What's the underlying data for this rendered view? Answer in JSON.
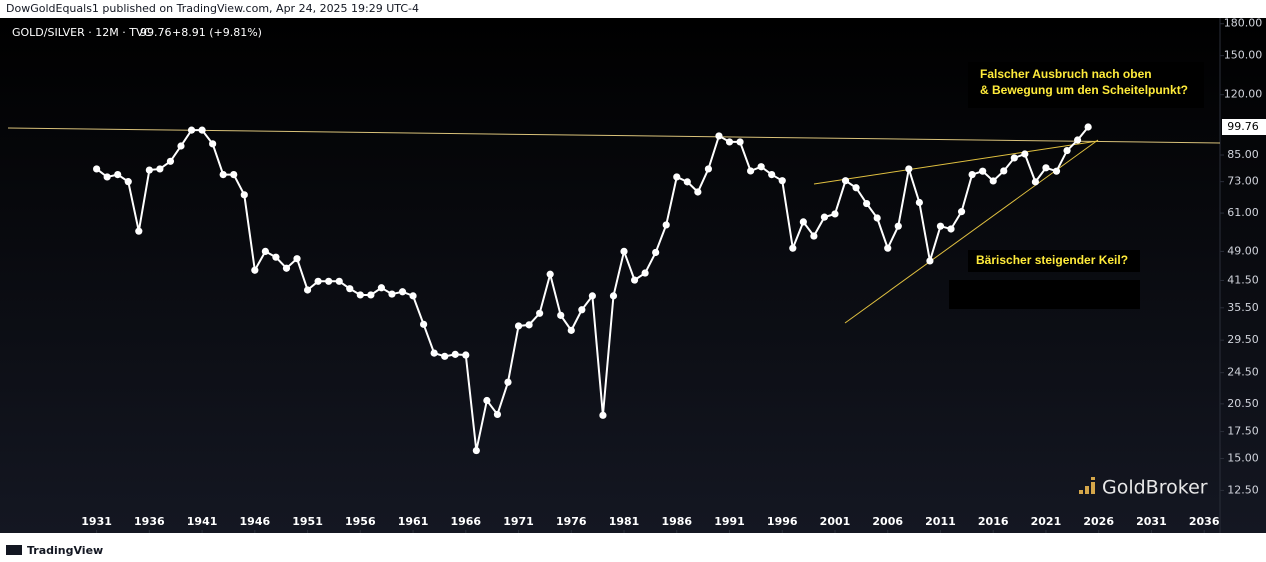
{
  "header": {
    "byline": "DowGoldEquals1 published on TradingView.com, Apr 24, 2025 19:29 UTC-4"
  },
  "chart_data": {
    "type": "line",
    "log_scale": true,
    "grid": false,
    "legend_change": "+8.91 (+9.81%)",
    "annotations": [
      "Falscher Ausbruch nach oben",
      "& Bewegung um den Scheitelpunkt?",
      "Bärischer steigender Keil?"
    ],
    "x": [
      1931,
      1932,
      1933,
      1934,
      1935,
      1936,
      1937,
      1938,
      1939,
      1940,
      1941,
      1942,
      1943,
      1944,
      1945,
      1946,
      1947,
      1948,
      1949,
      1950,
      1951,
      1952,
      1953,
      1954,
      1955,
      1956,
      1957,
      1958,
      1959,
      1960,
      1961,
      1962,
      1963,
      1964,
      1965,
      1966,
      1967,
      1968,
      1969,
      1970,
      1971,
      1972,
      1973,
      1974,
      1975,
      1976,
      1977,
      1978,
      1979,
      1980,
      1981,
      1982,
      1983,
      1984,
      1985,
      1986,
      1987,
      1988,
      1989,
      1990,
      1991,
      1992,
      1993,
      1994,
      1995,
      1996,
      1997,
      1998,
      1999,
      2000,
      2001,
      2002,
      2003,
      2004,
      2005,
      2006,
      2007,
      2008,
      2009,
      2010,
      2011,
      2012,
      2013,
      2014,
      2015,
      2016,
      2017,
      2018,
      2019,
      2020,
      2021,
      2022,
      2023,
      2024,
      2025
    ],
    "series": [
      {
        "name": "GOLD/SILVER · 12M · TVC",
        "color": "#ffffff",
        "values": [
          78.5,
          75,
          76,
          73,
          55,
          78,
          78.5,
          82,
          89.5,
          98,
          98,
          90.6,
          76,
          76,
          67.7,
          44,
          49,
          47.4,
          44.5,
          47,
          39.3,
          41.3,
          41.3,
          41.3,
          39.6,
          38.2,
          38.2,
          39.8,
          38.4,
          38.9,
          38,
          32.3,
          27.4,
          26.9,
          27.2,
          27.1,
          15.7,
          20.9,
          19.3,
          23.2,
          32,
          32.2,
          34.4,
          43,
          34,
          31.2,
          35.1,
          38,
          19.2,
          38,
          49,
          41.6,
          43.3,
          48.7,
          57,
          75,
          72.9,
          68.8,
          78.5,
          94.8,
          91.6,
          91.6,
          77.6,
          79.5,
          76,
          73.4,
          49.9,
          58,
          53.5,
          59.6,
          60.7,
          73.4,
          70.5,
          64.4,
          59.3,
          49.9,
          56.6,
          78.5,
          64.8,
          46.4,
          56.6,
          55.7,
          61.5,
          76,
          77.5,
          73.3,
          77.6,
          83.6,
          85.5,
          72.9,
          79,
          77.5,
          87.2,
          92.6,
          99.76
        ]
      }
    ],
    "xlim": [
      1922.6,
      2037.5
    ],
    "xticks": [
      1931,
      1936,
      1941,
      1946,
      1951,
      1956,
      1961,
      1966,
      1971,
      1976,
      1981,
      1986,
      1991,
      1996,
      2001,
      2006,
      2011,
      2016,
      2021,
      2026,
      2031,
      2036
    ],
    "ylim": [
      9.8,
      186
    ],
    "yticks": [
      {
        "value": 12.5,
        "label": "12.50"
      },
      {
        "value": 15,
        "label": "15.00"
      },
      {
        "value": 17.5,
        "label": "17.50"
      },
      {
        "value": 20.5,
        "label": "20.50"
      },
      {
        "value": 24.5,
        "label": "24.50"
      },
      {
        "value": 29.5,
        "label": "29.50"
      },
      {
        "value": 35.5,
        "label": "35.50"
      },
      {
        "value": 41.5,
        "label": "41.50"
      },
      {
        "value": 49,
        "label": "49.00"
      },
      {
        "value": 61,
        "label": "61.00"
      },
      {
        "value": 73,
        "label": "73.00"
      },
      {
        "value": 85,
        "label": "85.00"
      },
      {
        "value": 120,
        "label": "120.00"
      },
      {
        "value": 150,
        "label": "150.00"
      },
      {
        "value": 180,
        "label": "180.00"
      }
    ]
  },
  "footer": {
    "brand": "GoldBroker",
    "platform": "TradingView"
  }
}
